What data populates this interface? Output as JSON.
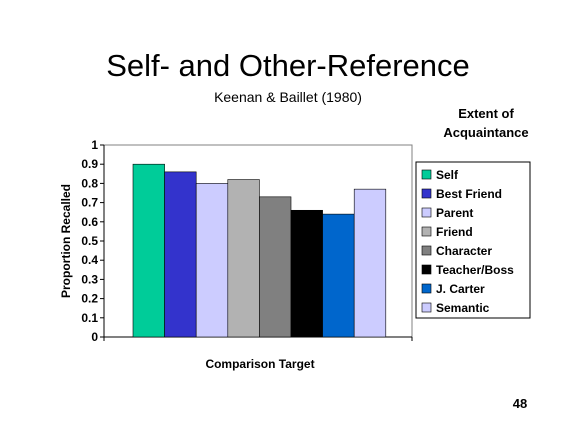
{
  "slide": {
    "title": "Self- and Other-Reference",
    "subtitle": "Keenan & Baillet (1980)",
    "legend_title": "Extent of Acquaintance",
    "page_number": "48"
  },
  "chart_data": {
    "type": "bar",
    "xlabel": "Comparison Target",
    "ylabel": "Proportion Recalled",
    "ylim": [
      0,
      1
    ],
    "yticks": [
      "0",
      "0.1",
      "0.2",
      "0.3",
      "0.4",
      "0.5",
      "0.6",
      "0.7",
      "0.8",
      "0.9",
      "1"
    ],
    "grid": false,
    "legend_position": "right",
    "series": [
      {
        "name": "Self",
        "value": 0.9,
        "color": "#00cc99"
      },
      {
        "name": "Best Friend",
        "value": 0.86,
        "color": "#3333cc"
      },
      {
        "name": "Parent",
        "value": 0.8,
        "color": "#ccccff"
      },
      {
        "name": "Friend",
        "value": 0.82,
        "color": "#b2b2b2"
      },
      {
        "name": "Character",
        "value": 0.73,
        "color": "#808080"
      },
      {
        "name": "Teacher/Boss",
        "value": 0.66,
        "color": "#000000"
      },
      {
        "name": "J. Carter",
        "value": 0.64,
        "color": "#0066cc"
      },
      {
        "name": "Semantic",
        "value": 0.77,
        "color": "#ccccff"
      }
    ]
  }
}
